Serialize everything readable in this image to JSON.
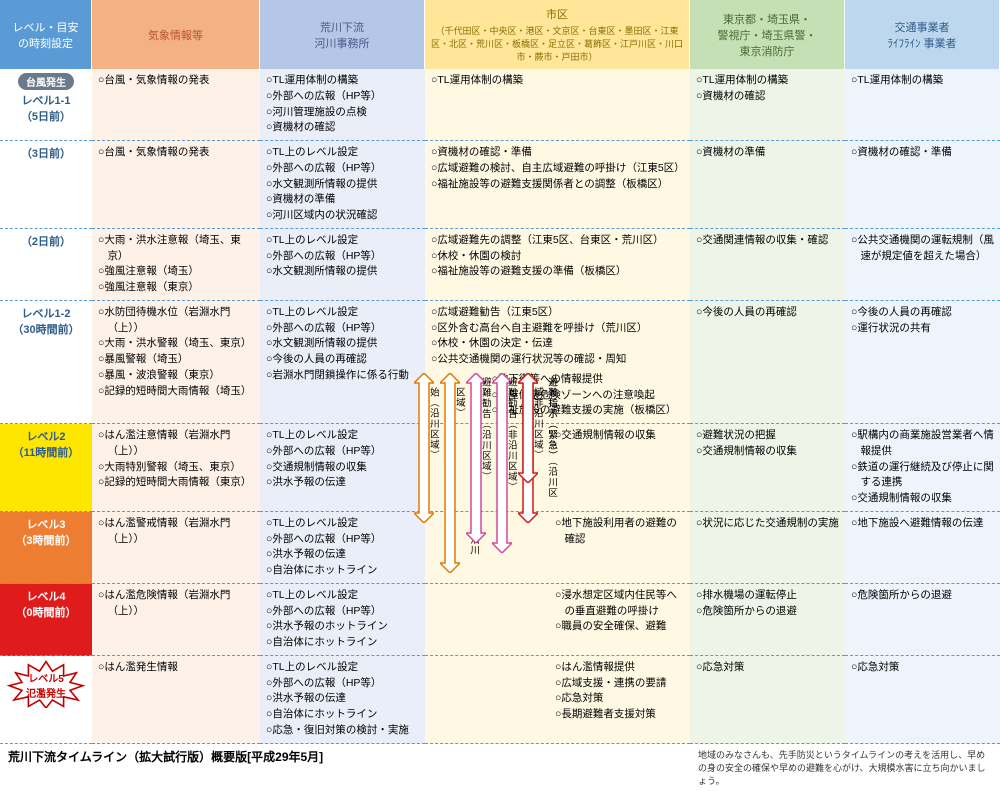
{
  "header": {
    "c0": {
      "l1": "レベル・目安",
      "l2": "の時刻設定"
    },
    "c1": "気象情報等",
    "c2": {
      "l1": "荒川下流",
      "l2": "河川事務所"
    },
    "c3": {
      "l1": "市区",
      "l2": "（千代田区・中央区・港区・文京区・台東区・墨田区・江東区・北区・荒川区・板橋区・足立区・葛飾区・江戸川区・川口市・蕨市・戸田市）"
    },
    "c4": {
      "l1": "東京都・埼玉県・",
      "l2": "警視庁・埼玉県警・",
      "l3": "東京消防庁"
    },
    "c5": {
      "l1": "交通事業者",
      "l2": "ﾗｲﾌﾗｲﾝ 事業者"
    }
  },
  "rows": [
    {
      "level": {
        "pill": "台風発生",
        "line1": "レベル1-1",
        "line2": "（5日前）",
        "bg": "bg-w"
      },
      "c1": [
        "○台風・気象情報の発表"
      ],
      "c2": [
        "○TL運用体制の構築",
        "○外部への広報（HP等）",
        "○河川管理施設の点検",
        "○資機材の確認"
      ],
      "c3": [
        "○TL運用体制の構築"
      ],
      "c4": [
        "○TL運用体制の構築",
        "○資機材の確認"
      ],
      "c5": [
        "○TL運用体制の構築"
      ]
    },
    {
      "level": {
        "line1": "（3日前）",
        "bg": "bg-w"
      },
      "c1": [
        "○台風・気象情報の発表"
      ],
      "c2": [
        "○TL上のレベル設定",
        "○外部への広報（HP等）",
        "○水文観測所情報の提供",
        "○資機材の準備",
        "○河川区域内の状況確認"
      ],
      "c3": [
        "○資機材の確認・準備",
        "○広域避難の検討、自主広域避難の呼掛け（江東5区）",
        "○福祉施設等の避難支援関係者との調整（板橋区）"
      ],
      "c4": [
        "○資機材の準備"
      ],
      "c5": [
        "○資機材の確認・準備"
      ]
    },
    {
      "level": {
        "line1": "（2日前）",
        "bg": "bg-w"
      },
      "c1": [
        "○大雨・洪水注意報（埼玉、東京）",
        "○強風注意報（埼玉）",
        "○強風注意報（東京）"
      ],
      "c2": [
        "○TL上のレベル設定",
        "○外部への広報（HP等）",
        "○水文観測所情報の提供"
      ],
      "c3": [
        "○広域避難先の調整（江東5区、台東区・荒川区）",
        "○休校・休園の検討",
        "○福祉施設等の避難支援の準備（板橋区）"
      ],
      "c4": [
        "○交通関連情報の収集・確認"
      ],
      "c5": [
        "○公共交通機関の運転規制（風速が規定値を超えた場合）"
      ]
    },
    {
      "level": {
        "line1": "レベル1-2",
        "line2": "（30時間前）",
        "bg": "bg-w"
      },
      "c1": [
        "○水防団待機水位（岩淵水門（上））",
        "○大雨・洪水警報（埼玉、東京）",
        "○暴風警報（埼玉）",
        "○暴風・波浪警報（東京）",
        "○記録的短時間大雨情報（埼玉）"
      ],
      "c2": [
        "○TL上のレベル設定",
        "○外部への広報（HP等）",
        "○水文観測所情報の提供",
        "○今後の人員の再確認",
        "○岩淵水門閉鎖操作に係る行動"
      ],
      "c3": [
        "○広域避難勧告（江東5区）",
        "○区外含む高台へ自主避難を呼掛け（荒川区）",
        "○休校・休園の決定・伝達",
        "○公共交通機関の運行状況等の確認・周知"
      ],
      "c3b": [
        "○地下街等への情報提供",
        "○家屋倒壊危険ゾーンへの注意喚起",
        "○福祉施設の避難支援の実施（板橋区）"
      ],
      "c4": [
        "○今後の人員の再確認"
      ],
      "c5": [
        "○今後の人員の再確認",
        "○運行状況の共有"
      ]
    },
    {
      "level": {
        "line1": "レベル2",
        "line2": "（11時間前）",
        "bg": "bg-y"
      },
      "c1": [
        "○はん濫注意情報（岩淵水門（上））",
        "○大雨特別警報（埼玉、東京）",
        "○記録的短時間大雨情報（東京）"
      ],
      "c2": [
        "○TL上のレベル設定",
        "○外部への広報（HP等）",
        "○交通規制情報の収集",
        "○洪水予報の伝達"
      ],
      "c3": [
        "○交通規制情報の収集"
      ],
      "c4": [
        "○避難状況の把握",
        "○交通規制情報の収集"
      ],
      "c5": [
        "○駅構内の商業施設営業者へ情報提供",
        "○鉄道の運行継続及び停止に関する連携",
        "○交通規制情報の収集"
      ]
    },
    {
      "level": {
        "line1": "レベル3",
        "line2": "（3時間前）",
        "bg": "bg-o"
      },
      "c1": [
        "○はん濫警戒情報（岩淵水門（上））"
      ],
      "c2": [
        "○TL上のレベル設定",
        "○外部への広報（HP等）",
        "○洪水予報の伝達",
        "○自治体にホットライン"
      ],
      "c3": [
        "○地下施設利用者の避難の確認"
      ],
      "c4": [
        "○状況に応じた交通規制の実施"
      ],
      "c5": [
        "○地下施設へ避難情報の伝達"
      ]
    },
    {
      "level": {
        "line1": "レベル4",
        "line2": "（0時間前）",
        "bg": "bg-r"
      },
      "c1": [
        "○はん濫危険情報（岩淵水門（上））"
      ],
      "c2": [
        "○TL上のレベル設定",
        "○外部への広報（HP等）",
        "○洪水予報のホットライン",
        "○自治体にホットライン"
      ],
      "c3": [
        "○浸水想定区域内住民等への垂直避難の呼掛け",
        "○職員の安全確保、避難"
      ],
      "c4": [
        "○排水機場の運転停止",
        "○危険箇所からの退避"
      ],
      "c5": [
        "○危険箇所からの退避"
      ]
    },
    {
      "level": {
        "starburst": true,
        "sl1": "レベル5",
        "sl2": "氾濫発生",
        "bg": "bg-w"
      },
      "c1": [
        "○はん濫発生情報"
      ],
      "c2": [
        "○TL上のレベル設定",
        "○外部への広報（HP等）",
        "○洪水予報の伝達",
        "○自治体にホットライン",
        "○応急・復旧対策の検討・実施"
      ],
      "c3": [
        "○はん濫情報提供",
        "○広域支援・連携の要請",
        "○応急対策",
        "○長期避難者支援対策"
      ],
      "c4": [
        "○応急対策"
      ],
      "c5": [
        "○応急対策"
      ]
    }
  ],
  "arrows": {
    "a1": "避難準備・高齢者等避難開始（沿川区域）",
    "a2": "避難準備・高齢者等避難開始（非沿川区域）",
    "a3": "避難勧告（沿川区域）",
    "a4": "避難勧告（非沿川区域）",
    "a5": "避難指示（緊急）（沿川区域）",
    "a6": "避難指示（緊急）（非沿川区域）"
  },
  "footer": "荒川下流タイムライン（拡大試行版）概要版[平成29年5月]",
  "footnote": "地域のみなさんも、先手防災というタイムラインの考えを活用し、早めの身の安全の確保や早めの避難を心がけ、大規模水害に立ち向かいましょう。"
}
